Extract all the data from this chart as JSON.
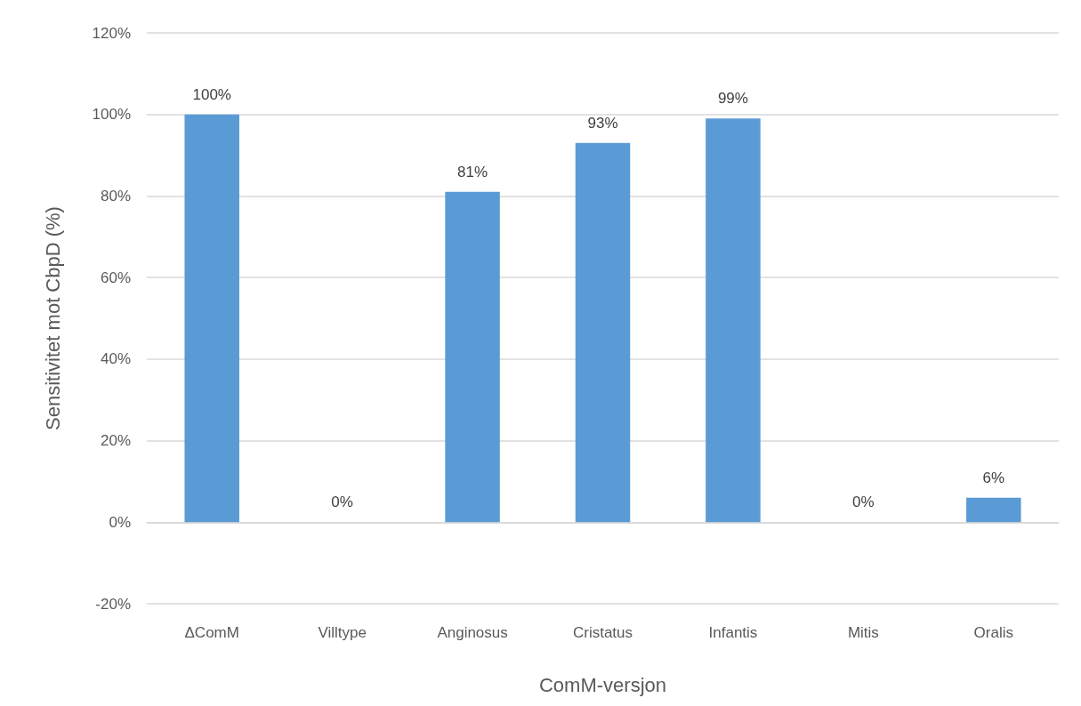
{
  "chart_data": {
    "type": "bar",
    "xlabel": "ComM-versjon",
    "ylabel": "Sensitivitet mot CbpD (%)",
    "categories": [
      "ΔComM",
      "Villtype",
      "Anginosus",
      "Cristatus",
      "Infantis",
      "Mitis",
      "Oralis"
    ],
    "values": [
      100,
      0,
      81,
      93,
      99,
      0,
      6
    ],
    "value_labels": [
      "100%",
      "0%",
      "81%",
      "93%",
      "99%",
      "0%",
      "6%"
    ],
    "color": "#5b9bd5",
    "ylim": [
      -20,
      120
    ],
    "yticks": [
      {
        "value": -20,
        "label": "-20%"
      },
      {
        "value": 0,
        "label": "0%"
      },
      {
        "value": 20,
        "label": "20%"
      },
      {
        "value": 40,
        "label": "40%"
      },
      {
        "value": 60,
        "label": "60%"
      },
      {
        "value": 80,
        "label": "80%"
      },
      {
        "value": 100,
        "label": "100%"
      },
      {
        "value": 120,
        "label": "120%"
      }
    ],
    "grid": "y"
  }
}
